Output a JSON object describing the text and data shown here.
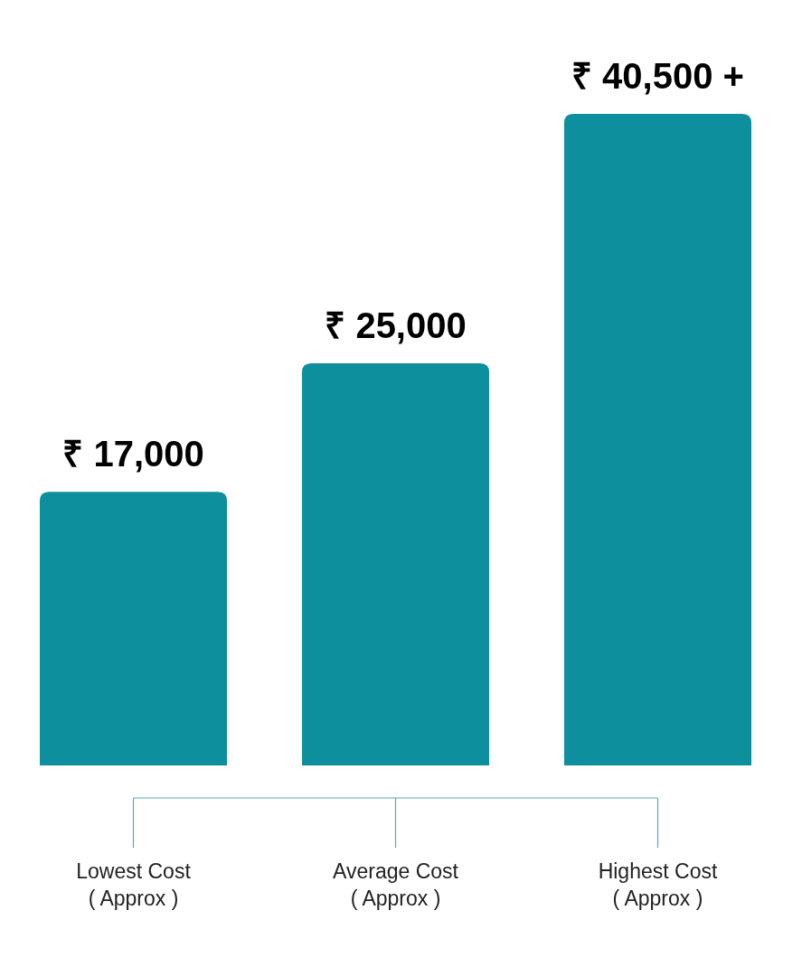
{
  "chart_data": {
    "type": "bar",
    "categories": [
      "Lowest Cost\n( Approx )",
      "Average Cost\n( Approx )",
      "Highest Cost\n( Approx )"
    ],
    "values": [
      17000,
      25000,
      40500
    ],
    "value_labels": [
      "₹ 17,000",
      "₹ 25,000",
      "₹ 40,500 +"
    ],
    "color": "#0e8f9e",
    "ylim": [
      0,
      40500
    ],
    "tick_labels": "x"
  }
}
